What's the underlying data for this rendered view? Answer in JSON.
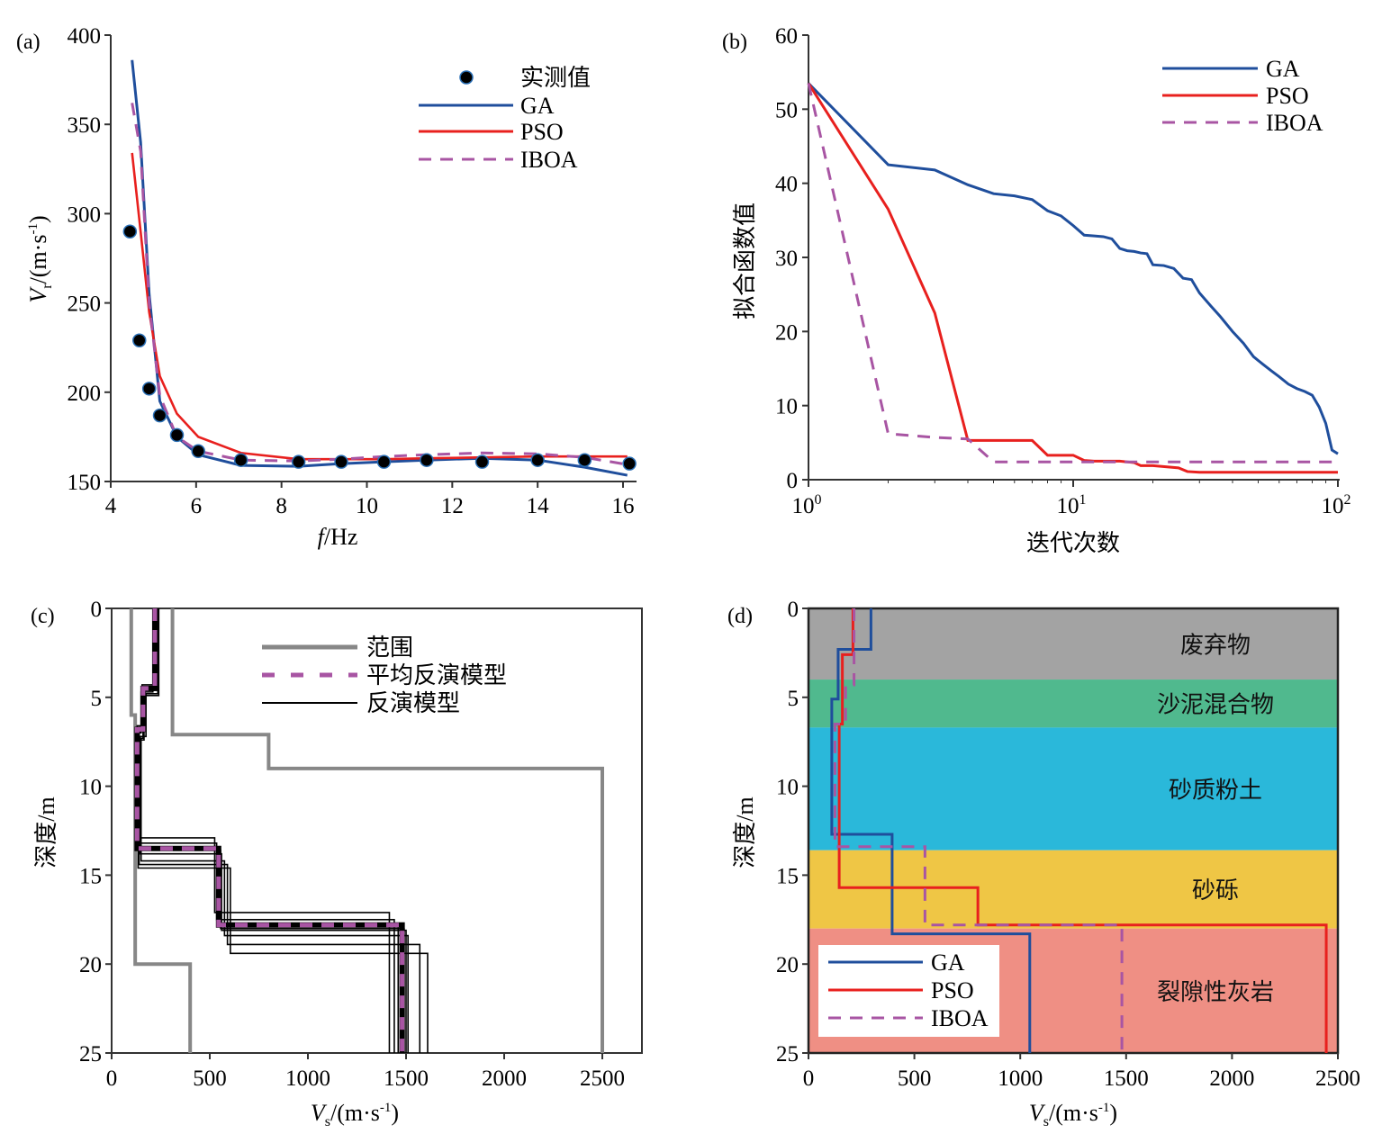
{
  "chart_data": [
    {
      "panel": "(a)",
      "type": "line",
      "xlabel_italic": "f",
      "xlabel_rest": "/Hz",
      "ylabel_italic": "V",
      "ylabel_sub": "r",
      "ylabel_rest": "/(m·s",
      "ylabel_sup": "-1",
      "ylabel_close": ")",
      "xlim": [
        4,
        16.3
      ],
      "ylim": [
        150,
        400
      ],
      "xticks": [
        4,
        6,
        8,
        10,
        12,
        14,
        16
      ],
      "yticks": [
        150,
        200,
        250,
        300,
        350,
        400
      ],
      "legend_position": "top-right",
      "legend": [
        "实测值",
        "GA",
        "PSO",
        "IBOA"
      ],
      "observed": {
        "name": "实测值",
        "x": [
          4.45,
          4.67,
          4.9,
          5.15,
          5.55,
          6.05,
          7.05,
          8.4,
          9.4,
          10.4,
          11.4,
          12.7,
          14.0,
          15.1,
          16.15
        ],
        "y": [
          290,
          229,
          202,
          187,
          176,
          167,
          162,
          161,
          161,
          161,
          162,
          161,
          162,
          162,
          160
        ]
      },
      "series": [
        {
          "name": "GA",
          "color": "#1f4e9c",
          "dash": "solid",
          "x": [
            4.5,
            4.7,
            4.9,
            5.15,
            5.55,
            6.05,
            7.05,
            8.4,
            9.4,
            10.4,
            11.4,
            12.7,
            14.0,
            15.1,
            16.1
          ],
          "y": [
            386,
            340,
            255,
            195,
            175,
            165,
            159,
            158.5,
            160,
            161,
            162,
            163,
            162,
            158,
            153.5
          ]
        },
        {
          "name": "PSO",
          "color": "#e8201e",
          "dash": "solid",
          "x": [
            4.5,
            4.7,
            4.9,
            5.15,
            5.55,
            6.05,
            7.05,
            8.4,
            9.4,
            10.4,
            11.4,
            12.7,
            14.0,
            15.1,
            16.1
          ],
          "y": [
            334,
            290,
            245,
            209,
            188,
            175,
            166,
            162.5,
            162.5,
            162.5,
            163,
            163.5,
            164,
            164,
            164
          ]
        },
        {
          "name": "IBOA",
          "color": "#a855a3",
          "dash": "dashed",
          "x": [
            4.5,
            4.7,
            4.9,
            5.15,
            5.55,
            6.05,
            7.05,
            8.4,
            9.4,
            10.4,
            11.4,
            12.7,
            14.0,
            15.1,
            16.1
          ],
          "y": [
            362,
            335,
            250,
            198,
            175,
            167,
            162,
            161.5,
            162.5,
            164,
            165,
            166,
            165.5,
            163.5,
            159.5
          ]
        }
      ]
    },
    {
      "panel": "(b)",
      "type": "line",
      "xscale": "log",
      "xlabel": "迭代次数",
      "ylabel": "拟合函数值",
      "xlim": [
        1,
        100
      ],
      "ylim": [
        0,
        60
      ],
      "xticks": [
        {
          "base": "10",
          "exp": "0",
          "value": 1
        },
        {
          "base": "10",
          "exp": "1",
          "value": 10
        },
        {
          "base": "10",
          "exp": "2",
          "value": 100
        }
      ],
      "yticks": [
        0,
        10,
        20,
        30,
        40,
        50,
        60
      ],
      "legend_position": "top-right",
      "legend": [
        "GA",
        "PSO",
        "IBOA"
      ],
      "series": [
        {
          "name": "GA",
          "color": "#1f4e9c",
          "dash": "solid",
          "x": [
            1,
            2,
            3,
            4,
            5,
            6,
            7,
            8,
            9,
            10,
            11,
            12,
            13,
            14,
            15,
            16,
            17,
            18,
            19,
            20,
            22,
            24,
            26,
            28,
            30,
            33,
            36,
            40,
            44,
            48,
            52,
            56,
            60,
            65,
            70,
            75,
            80,
            85,
            90,
            95,
            100
          ],
          "y": [
            53.5,
            42.5,
            41.8,
            39.8,
            38.6,
            38.3,
            37.8,
            36.3,
            35.6,
            34.3,
            33.0,
            32.9,
            32.8,
            32.5,
            31.2,
            30.9,
            30.8,
            30.6,
            30.5,
            29.0,
            28.9,
            28.5,
            27.2,
            27.0,
            25.2,
            23.5,
            22.0,
            20.0,
            18.4,
            16.6,
            15.6,
            14.7,
            13.9,
            12.9,
            12.3,
            11.9,
            11.4,
            9.8,
            7.6,
            4.0,
            3.5
          ]
        },
        {
          "name": "PSO",
          "color": "#e8201e",
          "dash": "solid",
          "x": [
            1,
            2,
            3,
            4,
            5,
            6,
            7,
            8,
            10,
            11,
            12,
            15,
            17,
            18,
            20,
            25,
            27,
            30,
            40,
            60,
            100
          ],
          "y": [
            53.5,
            36.5,
            22.5,
            5.3,
            5.3,
            5.3,
            5.3,
            3.3,
            3.3,
            2.6,
            2.5,
            2.5,
            2.3,
            1.9,
            1.9,
            1.6,
            1.1,
            1.0,
            1.0,
            1.0,
            1.0
          ]
        },
        {
          "name": "IBOA",
          "color": "#a855a3",
          "dash": "dashed",
          "x": [
            1,
            2,
            3,
            4,
            5,
            10,
            20,
            50,
            100
          ],
          "y": [
            53.5,
            6.2,
            5.7,
            5.5,
            2.4,
            2.4,
            2.4,
            2.4,
            2.4
          ]
        }
      ]
    },
    {
      "panel": "(c)",
      "type": "line",
      "xlabel_italic": "V",
      "xlabel_sub": "s",
      "xlabel_rest": "/(m·s",
      "xlabel_sup": "-1",
      "xlabel_close": ")",
      "ylabel": "深度/m",
      "xlim": [
        0,
        2700
      ],
      "ylim": [
        25,
        0
      ],
      "xticks": [
        0,
        500,
        1000,
        1500,
        2000,
        2500
      ],
      "yticks": [
        0,
        5,
        10,
        15,
        20,
        25
      ],
      "legend_position": "top-right",
      "legend": [
        "范围",
        "平均反演模型",
        "反演模型"
      ],
      "range_bounds": [
        {
          "name": "lower",
          "depth_tops": [
            0,
            6.0,
            20.0
          ],
          "velocity": [
            100,
            120,
            400
          ]
        },
        {
          "name": "upper",
          "depth_tops": [
            0,
            7.1,
            9.0
          ],
          "velocity": [
            310,
            800,
            2500
          ]
        }
      ],
      "mean_model": {
        "name": "平均反演模型",
        "depth_tops": [
          0,
          4.5,
          6.8,
          13.5,
          17.8
        ],
        "velocity": [
          220,
          160,
          130,
          545,
          1480
        ]
      },
      "inversion_models": [
        {
          "depth_tops": [
            0,
            4.3,
            6.6,
            12.9,
            17.1
          ],
          "velocity": [
            230,
            155,
            130,
            525,
            1415
          ]
        },
        {
          "depth_tops": [
            0,
            4.4,
            6.7,
            13.2,
            17.5
          ],
          "velocity": [
            225,
            160,
            135,
            535,
            1440
          ]
        },
        {
          "depth_tops": [
            0,
            4.5,
            6.8,
            13.4,
            17.7
          ],
          "velocity": [
            220,
            165,
            140,
            540,
            1460
          ]
        },
        {
          "depth_tops": [
            0,
            4.6,
            6.9,
            13.5,
            17.8
          ],
          "velocity": [
            215,
            170,
            130,
            550,
            1475
          ]
        },
        {
          "depth_tops": [
            0,
            4.7,
            7.0,
            13.6,
            18.0
          ],
          "velocity": [
            210,
            150,
            125,
            555,
            1490
          ]
        },
        {
          "depth_tops": [
            0,
            4.8,
            7.2,
            13.8,
            18.1
          ],
          "velocity": [
            235,
            175,
            145,
            560,
            1500
          ]
        },
        {
          "depth_tops": [
            0,
            4.9,
            7.3,
            14.2,
            18.4
          ],
          "velocity": [
            240,
            160,
            150,
            575,
            1510
          ]
        },
        {
          "depth_tops": [
            0,
            4.5,
            7.4,
            14.4,
            18.9
          ],
          "velocity": [
            220,
            165,
            140,
            590,
            1570
          ]
        },
        {
          "depth_tops": [
            0,
            4.6,
            6.9,
            14.6,
            19.4
          ],
          "velocity": [
            225,
            155,
            135,
            605,
            1610
          ]
        }
      ]
    },
    {
      "panel": "(d)",
      "type": "line",
      "xlabel_italic": "V",
      "xlabel_sub": "s",
      "xlabel_rest": "/(m·s",
      "xlabel_sup": "-1",
      "xlabel_close": ")",
      "ylabel": "深度/m",
      "xlim": [
        0,
        2500
      ],
      "ylim": [
        25,
        0
      ],
      "xticks": [
        0,
        500,
        1000,
        1500,
        2000,
        2500
      ],
      "yticks": [
        0,
        5,
        10,
        15,
        20,
        25
      ],
      "legend_position": "bottom-left",
      "legend": [
        "GA",
        "PSO",
        "IBOA"
      ],
      "layers": [
        {
          "name": "废弃物",
          "top": 0,
          "bottom": 4.0,
          "color": "#a3a3a3"
        },
        {
          "name": "沙泥混合物",
          "top": 4.0,
          "bottom": 6.7,
          "color": "#50b98e"
        },
        {
          "name": "砂质粉土",
          "top": 6.7,
          "bottom": 13.6,
          "color": "#2ab8da"
        },
        {
          "name": "砂砾",
          "top": 13.6,
          "bottom": 18.0,
          "color": "#efc645"
        },
        {
          "name": "裂隙性灰岩",
          "top": 18.0,
          "bottom": 25,
          "color": "#ef8f84"
        }
      ],
      "series": [
        {
          "name": "GA",
          "color": "#1f4e9c",
          "dash": "solid",
          "depth_tops": [
            0,
            2.3,
            5.1,
            12.7,
            18.3
          ],
          "velocity": [
            295,
            140,
            110,
            395,
            1045
          ]
        },
        {
          "name": "PSO",
          "color": "#e8201e",
          "dash": "solid",
          "depth_tops": [
            0,
            2.6,
            6.5,
            15.7,
            17.8
          ],
          "velocity": [
            210,
            160,
            145,
            800,
            2445
          ]
        },
        {
          "name": "IBOA",
          "color": "#a855a3",
          "dash": "dashed",
          "depth_tops": [
            0,
            4.3,
            6.5,
            13.4,
            17.8
          ],
          "velocity": [
            215,
            175,
            125,
            550,
            1480
          ]
        }
      ]
    }
  ]
}
